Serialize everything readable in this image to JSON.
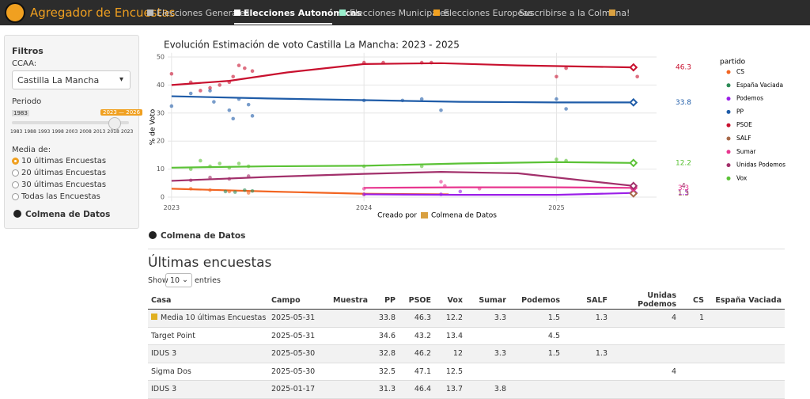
{
  "nav": {
    "brand": "Agregador de Encuestas",
    "links": [
      "Elecciones Generales",
      "Elecciones Autonómicas",
      "Elecciones Municipales",
      "Elecciones Europeas",
      "Suscribirse a la Colmena!"
    ]
  },
  "sidebar": {
    "title": "Filtros",
    "ccaa_label": "CCAA:",
    "ccaa_value": "Castilla La Mancha",
    "period_label": "Periodo",
    "slider_min": "1983",
    "slider_range": "2023 — 2026",
    "slider_ticks": [
      "1983",
      "1988",
      "1993",
      "1998",
      "2003",
      "2008",
      "2013",
      "2018",
      "2023"
    ],
    "media_label": "Media de:",
    "media_options": [
      "10 últimas Encuestas",
      "20 últimas Encuestas",
      "30 últimas Encuestas",
      "Todas las Encuestas"
    ],
    "button": "Colmena de Datos"
  },
  "chart_data": {
    "type": "line",
    "title": "Evolución Estimación de voto Castilla La Mancha: 2023 - 2025",
    "ylabel": "% de Voto",
    "caption_prefix": "Creado por",
    "caption_suffix": "Colmena de Datos",
    "legend_title": "partido",
    "grid": true,
    "xlim": [
      2022.98,
      2025.52
    ],
    "xticks": [
      2023,
      2024,
      2025
    ],
    "ylim": [
      -1.5,
      51.5
    ],
    "yticks": [
      0,
      10,
      20,
      30,
      40,
      50
    ],
    "series": [
      {
        "name": "CS",
        "color": "#f26522",
        "trend": {
          "x": [
            2023,
            2023.5,
            2024,
            2024.44
          ],
          "values": [
            3,
            2,
            1.2,
            1
          ]
        },
        "polls": {
          "x": [
            2023.1,
            2023.2,
            2023.3,
            2023.4,
            2024
          ],
          "values": [
            3,
            2.5,
            2,
            1.5,
            1
          ]
        }
      },
      {
        "name": "España Vaciada",
        "color": "#2e8b57",
        "polls": {
          "x": [
            2023.28,
            2023.33,
            2023.38,
            2023.42
          ],
          "values": [
            2,
            1.8,
            2.5,
            2.2
          ]
        }
      },
      {
        "name": "Podemos",
        "color": "#9b1fe8",
        "trend": {
          "x": [
            2024,
            2024.5,
            2025,
            2025.4
          ],
          "values": [
            1,
            0.8,
            0.8,
            1.5
          ]
        },
        "polls": {
          "x": [
            2024,
            2024.4,
            2024.5
          ],
          "values": [
            1,
            1,
            2
          ]
        },
        "last": {
          "x": 2025.4,
          "value": 1.5
        }
      },
      {
        "name": "PP",
        "color": "#1f5ca8",
        "trend": {
          "x": [
            2023,
            2023.5,
            2024,
            2024.5,
            2025,
            2025.4
          ],
          "values": [
            36,
            35.2,
            34.6,
            34,
            33.8,
            33.8
          ]
        },
        "polls": {
          "x": [
            2023,
            2023.1,
            2023.2,
            2023.22,
            2023.3,
            2023.32,
            2023.35,
            2023.4,
            2023.42,
            2024,
            2024.2,
            2024.3,
            2024.4,
            2025,
            2025.05
          ],
          "values": [
            32.5,
            37,
            38,
            34,
            31,
            28,
            35,
            33,
            29,
            34.5,
            34.5,
            35,
            31,
            35,
            31.5
          ]
        },
        "last": {
          "x": 2025.4,
          "value": 33.8
        }
      },
      {
        "name": "PSOE",
        "color": "#c8102e",
        "trend": {
          "x": [
            2023,
            2023.3,
            2023.6,
            2024,
            2024.4,
            2024.8,
            2025.4
          ],
          "values": [
            40,
            41.5,
            44.5,
            47.5,
            47.8,
            47,
            46.3
          ]
        },
        "polls": {
          "x": [
            2023,
            2023.1,
            2023.15,
            2023.2,
            2023.25,
            2023.3,
            2023.32,
            2023.35,
            2023.38,
            2023.42,
            2024,
            2024.1,
            2024.3,
            2024.35,
            2025,
            2025.05,
            2025.42
          ],
          "values": [
            44,
            41,
            38,
            39,
            40,
            41,
            43,
            47,
            46,
            45,
            48,
            48,
            48,
            48,
            43,
            46,
            43
          ]
        },
        "last": {
          "x": 2025.4,
          "value": 46.3
        }
      },
      {
        "name": "SALF",
        "color": "#a86a4a",
        "polls": {
          "x": [
            2025.4
          ],
          "values": [
            1.3
          ]
        },
        "last": {
          "x": 2025.4,
          "value": 1.3
        }
      },
      {
        "name": "Sumar",
        "color": "#e8368f",
        "trend": {
          "x": [
            2024,
            2024.5,
            2025,
            2025.4
          ],
          "values": [
            3.3,
            3.5,
            3.5,
            3.3
          ]
        },
        "polls": {
          "x": [
            2024,
            2024.4,
            2024.42,
            2024.6
          ],
          "values": [
            3,
            5.5,
            4,
            3
          ]
        },
        "last": {
          "x": 2025.4,
          "value": 3.3
        }
      },
      {
        "name": "Unidas Podemos",
        "color": "#a2306b",
        "trend": {
          "x": [
            2023,
            2023.5,
            2024,
            2024.4,
            2024.8,
            2025.4
          ],
          "values": [
            5.8,
            7.2,
            8.3,
            9,
            8.5,
            4
          ]
        },
        "polls": {
          "x": [
            2023.1,
            2023.2,
            2023.3,
            2023.4
          ],
          "values": [
            6,
            7,
            6.5,
            7.5
          ]
        },
        "last": {
          "x": 2025.4,
          "value": 4
        }
      },
      {
        "name": "Vox",
        "color": "#5bc236",
        "trend": {
          "x": [
            2023,
            2023.5,
            2024,
            2024.5,
            2025,
            2025.4
          ],
          "values": [
            10.5,
            11,
            11.2,
            12,
            12.5,
            12.2
          ]
        },
        "polls": {
          "x": [
            2023.1,
            2023.15,
            2023.2,
            2023.25,
            2023.3,
            2023.35,
            2023.4,
            2024,
            2024.3,
            2025,
            2025.05
          ],
          "values": [
            10,
            13,
            11,
            12,
            10.5,
            12,
            11,
            11,
            11,
            13.5,
            13
          ]
        },
        "last": {
          "x": 2025.4,
          "value": 12.2
        }
      }
    ]
  },
  "section_title": "Colmena de Datos",
  "table": {
    "title": "Últimas encuestas",
    "show": "Show",
    "length": "10",
    "entries": "entries",
    "columns": [
      "Casa",
      "Campo",
      "Muestra",
      "PP",
      "PSOE",
      "Vox",
      "Sumar",
      "Podemos",
      "SALF",
      "Unidas Podemos",
      "CS",
      "España Vaciada"
    ],
    "rows": [
      [
        "Media 10 últimas Encuestas",
        "2025-05-31",
        null,
        33.8,
        46.3,
        12.2,
        3.3,
        1.5,
        1.3,
        4,
        1,
        null
      ],
      [
        "Target Point",
        "2025-05-31",
        null,
        34.6,
        43.2,
        13.4,
        null,
        4.5,
        null,
        null,
        null,
        null
      ],
      [
        "IDUS 3",
        "2025-05-30",
        null,
        32.8,
        46.2,
        12,
        3.3,
        1.5,
        1.3,
        null,
        null,
        null
      ],
      [
        "Sigma Dos",
        "2025-05-30",
        null,
        32.5,
        47.1,
        12.5,
        null,
        null,
        null,
        4,
        null,
        null
      ],
      [
        "IDUS 3",
        "2025-01-17",
        null,
        31.3,
        46.4,
        13.7,
        3.8,
        null,
        null,
        null,
        null,
        null
      ]
    ]
  }
}
